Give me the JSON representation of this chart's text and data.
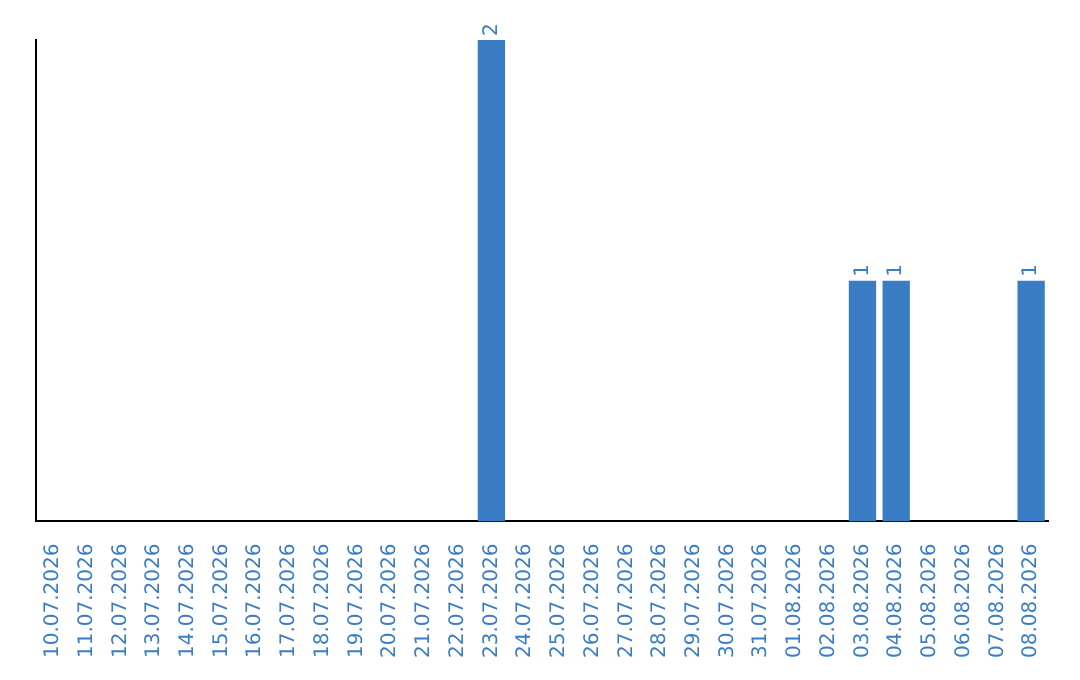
{
  "chart_data": {
    "type": "bar",
    "categories": [
      "10.07.2026",
      "11.07.2026",
      "12.07.2026",
      "13.07.2026",
      "14.07.2026",
      "15.07.2026",
      "16.07.2026",
      "17.07.2026",
      "18.07.2026",
      "19.07.2026",
      "20.07.2026",
      "21.07.2026",
      "22.07.2026",
      "23.07.2026",
      "24.07.2026",
      "25.07.2026",
      "26.07.2026",
      "27.07.2026",
      "28.07.2026",
      "29.07.2026",
      "30.07.2026",
      "31.07.2026",
      "01.08.2026",
      "02.08.2026",
      "03.08.2026",
      "04.08.2026",
      "05.08.2026",
      "06.08.2026",
      "07.08.2026",
      "08.08.2026"
    ],
    "values": [
      null,
      null,
      null,
      null,
      null,
      null,
      null,
      null,
      null,
      null,
      null,
      null,
      null,
      2,
      null,
      null,
      null,
      null,
      null,
      null,
      null,
      null,
      null,
      null,
      1,
      1,
      null,
      null,
      null,
      1
    ],
    "data_labels": true,
    "color": "#3b7dc4"
  }
}
